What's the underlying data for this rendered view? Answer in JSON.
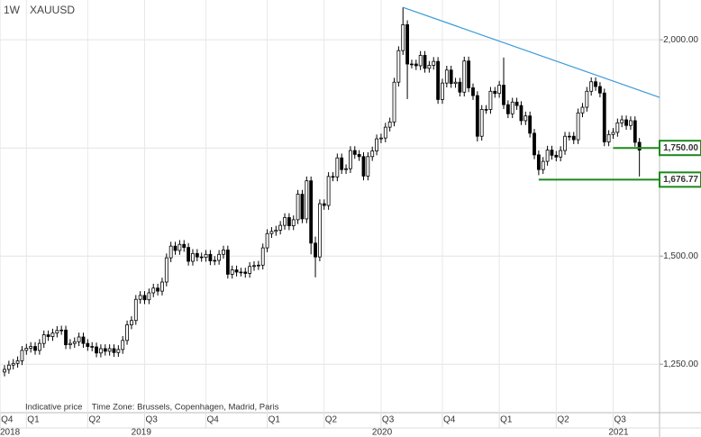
{
  "header": {
    "timeframe": "1W",
    "symbol": "XAUUSD"
  },
  "footnote": "Indicative price    Time Zone: Brussels, Copenhagen, Madrid, Paris",
  "chart_data": {
    "type": "candlestick",
    "open": [
      1232,
      1238,
      1248,
      1252,
      1258,
      1282,
      1287,
      1291,
      1282,
      1298,
      1318,
      1314,
      1322,
      1328,
      1329,
      1295,
      1298,
      1302,
      1313,
      1298,
      1291,
      1290,
      1276,
      1286,
      1280,
      1286,
      1277,
      1284,
      1305,
      1341,
      1351,
      1400,
      1409,
      1399,
      1415,
      1426,
      1419,
      1440,
      1496,
      1523,
      1513,
      1527,
      1520,
      1488,
      1506,
      1498,
      1497,
      1504,
      1489,
      1490,
      1504,
      1514,
      1458,
      1468,
      1463,
      1463,
      1460,
      1476,
      1478,
      1479,
      1519,
      1552,
      1557,
      1560,
      1571,
      1589,
      1570,
      1584,
      1643,
      1586,
      1674,
      1530,
      1498,
      1621,
      1617,
      1684,
      1683,
      1727,
      1700,
      1702,
      1744,
      1735,
      1730,
      1685,
      1730,
      1743,
      1771,
      1773,
      1798,
      1810,
      1902,
      1975,
      2035,
      1944,
      1944,
      1940,
      1964,
      1934,
      1941,
      1950,
      1862,
      1900,
      1930,
      1899,
      1902,
      1879,
      1951,
      1889,
      1871,
      1777,
      1839,
      1839,
      1881,
      1876,
      1895,
      1850,
      1829,
      1856,
      1848,
      1813,
      1824,
      1784,
      1734,
      1700,
      1719,
      1745,
      1733,
      1729,
      1744,
      1777,
      1777,
      1769,
      1831,
      1844,
      1881,
      1903,
      1892,
      1877,
      1764,
      1781,
      1786,
      1808,
      1815,
      1802,
      1813,
      1763
    ],
    "high": [
      1248,
      1258,
      1262,
      1268,
      1292,
      1297,
      1301,
      1301,
      1308,
      1328,
      1328,
      1332,
      1338,
      1339,
      1339,
      1308,
      1312,
      1323,
      1323,
      1308,
      1301,
      1300,
      1296,
      1296,
      1296,
      1296,
      1294,
      1315,
      1351,
      1361,
      1410,
      1419,
      1419,
      1425,
      1436,
      1436,
      1450,
      1506,
      1533,
      1533,
      1537,
      1537,
      1530,
      1516,
      1516,
      1508,
      1514,
      1514,
      1500,
      1514,
      1524,
      1524,
      1478,
      1478,
      1473,
      1473,
      1486,
      1488,
      1489,
      1529,
      1562,
      1567,
      1570,
      1581,
      1599,
      1599,
      1594,
      1653,
      1653,
      1684,
      1684,
      1545,
      1631,
      1631,
      1694,
      1694,
      1737,
      1737,
      1712,
      1754,
      1754,
      1745,
      1740,
      1740,
      1753,
      1781,
      1783,
      1808,
      1820,
      1912,
      1985,
      2075,
      2045,
      1954,
      1954,
      1974,
      1974,
      1951,
      1960,
      1960,
      1910,
      1940,
      1940,
      1912,
      1912,
      1961,
      1961,
      1899,
      1881,
      1849,
      1849,
      1891,
      1891,
      1905,
      1959,
      1860,
      1866,
      1866,
      1858,
      1834,
      1834,
      1794,
      1744,
      1729,
      1755,
      1755,
      1743,
      1754,
      1787,
      1787,
      1787,
      1841,
      1854,
      1891,
      1913,
      1913,
      1902,
      1887,
      1791,
      1796,
      1818,
      1825,
      1825,
      1823,
      1823,
      1773
    ],
    "low": [
      1222,
      1228,
      1238,
      1242,
      1248,
      1272,
      1277,
      1272,
      1272,
      1288,
      1304,
      1304,
      1312,
      1318,
      1285,
      1285,
      1288,
      1292,
      1288,
      1281,
      1280,
      1266,
      1266,
      1270,
      1270,
      1267,
      1267,
      1274,
      1295,
      1331,
      1341,
      1390,
      1389,
      1389,
      1405,
      1409,
      1409,
      1430,
      1486,
      1503,
      1503,
      1510,
      1478,
      1478,
      1488,
      1487,
      1487,
      1479,
      1479,
      1480,
      1494,
      1448,
      1448,
      1453,
      1453,
      1450,
      1450,
      1466,
      1468,
      1469,
      1509,
      1542,
      1547,
      1550,
      1561,
      1560,
      1560,
      1574,
      1576,
      1576,
      1504,
      1451,
      1488,
      1607,
      1607,
      1673,
      1673,
      1690,
      1690,
      1692,
      1725,
      1720,
      1675,
      1675,
      1720,
      1733,
      1761,
      1763,
      1788,
      1800,
      1892,
      1965,
      1863,
      1934,
      1930,
      1930,
      1924,
      1924,
      1931,
      1852,
      1852,
      1890,
      1889,
      1889,
      1869,
      1869,
      1879,
      1861,
      1765,
      1767,
      1829,
      1829,
      1866,
      1866,
      1840,
      1819,
      1819,
      1838,
      1803,
      1803,
      1774,
      1724,
      1687,
      1690,
      1709,
      1723,
      1719,
      1719,
      1734,
      1767,
      1759,
      1759,
      1821,
      1834,
      1871,
      1882,
      1867,
      1754,
      1754,
      1771,
      1776,
      1798,
      1792,
      1792,
      1753,
      1684
    ],
    "close": [
      1238,
      1248,
      1252,
      1258,
      1282,
      1287,
      1291,
      1282,
      1298,
      1318,
      1314,
      1322,
      1328,
      1329,
      1295,
      1298,
      1302,
      1313,
      1298,
      1291,
      1290,
      1276,
      1286,
      1280,
      1286,
      1277,
      1284,
      1305,
      1341,
      1351,
      1400,
      1409,
      1399,
      1415,
      1426,
      1419,
      1440,
      1496,
      1523,
      1513,
      1527,
      1520,
      1488,
      1506,
      1498,
      1497,
      1504,
      1489,
      1490,
      1504,
      1514,
      1458,
      1468,
      1463,
      1463,
      1460,
      1476,
      1478,
      1479,
      1519,
      1552,
      1557,
      1560,
      1571,
      1589,
      1570,
      1584,
      1643,
      1586,
      1674,
      1530,
      1498,
      1621,
      1617,
      1684,
      1683,
      1727,
      1700,
      1702,
      1744,
      1735,
      1730,
      1685,
      1730,
      1743,
      1771,
      1773,
      1798,
      1810,
      1902,
      1975,
      2035,
      1944,
      1944,
      1940,
      1964,
      1934,
      1941,
      1950,
      1862,
      1900,
      1930,
      1899,
      1902,
      1879,
      1951,
      1889,
      1871,
      1777,
      1839,
      1839,
      1881,
      1876,
      1895,
      1850,
      1829,
      1856,
      1848,
      1813,
      1824,
      1784,
      1734,
      1700,
      1719,
      1745,
      1733,
      1729,
      1744,
      1777,
      1777,
      1769,
      1831,
      1844,
      1881,
      1903,
      1892,
      1877,
      1764,
      1781,
      1786,
      1808,
      1815,
      1802,
      1813,
      1763,
      1745
    ],
    "xlim": [
      -1.03,
      149.6
    ],
    "ylim": [
      1138,
      2092
    ],
    "yticks": [
      {
        "value": 1250,
        "label": "1,250.00"
      },
      {
        "value": 1500,
        "label": "1,500.00"
      },
      {
        "value": 1750,
        "label": "1,750.00"
      },
      {
        "value": 2000,
        "label": "2,000.00"
      }
    ],
    "xticks": [
      {
        "value": -1,
        "label": "Q4"
      },
      {
        "value": 5,
        "label": "Q1"
      },
      {
        "value": 19,
        "label": "Q2"
      },
      {
        "value": 32,
        "label": "Q3"
      },
      {
        "value": 46,
        "label": "Q4"
      },
      {
        "value": 60,
        "label": "Q1"
      },
      {
        "value": 73,
        "label": "Q2"
      },
      {
        "value": 86,
        "label": "Q3"
      },
      {
        "value": 100,
        "label": "Q4"
      },
      {
        "value": 113,
        "label": "Q1"
      },
      {
        "value": 126,
        "label": "Q2"
      },
      {
        "value": 139,
        "label": "Q3"
      }
    ],
    "year_ticks": [
      {
        "value": -1,
        "label": "2018"
      },
      {
        "value": 31,
        "label": "2019"
      },
      {
        "value": 86,
        "label": "2020"
      },
      {
        "value": 140,
        "label": "2021"
      }
    ],
    "grid": true,
    "up_color": "#ffffff",
    "down_color": "#000000",
    "trendline": {
      "x": [
        91,
        149.6
      ],
      "y": [
        2075,
        1867
      ],
      "color": "#3a9ad9"
    },
    "levels": [
      {
        "value": 1750,
        "label": "1,750.00",
        "start": 139,
        "color": "#1a8a1a"
      },
      {
        "value": 1676.77,
        "label": "1,676.77",
        "start": 122,
        "color": "#1a8a1a"
      }
    ]
  }
}
